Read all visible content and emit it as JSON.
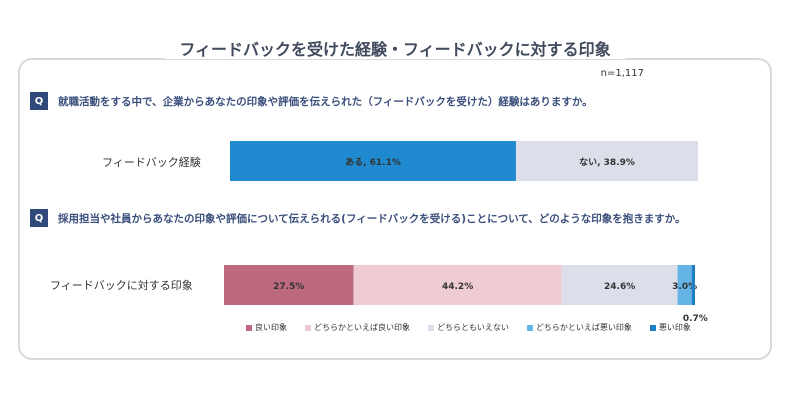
{
  "title": "フィードバックを受けた経験・フィードバックに対する印象",
  "sample_size": "n=1,117",
  "q1": {
    "badge": "Q",
    "text": "就職活動をする中で、企業からあなたの印象や評価を伝えられた（フィードバックを受けた）経験はありますか。"
  },
  "q2": {
    "badge": "Q",
    "text": "採用担当や社員からあなたの印象や評価について伝えられる(フィードバックを受ける)ことについて、どのような印象を抱きますか。"
  },
  "chart_data": [
    {
      "type": "bar",
      "orientation": "horizontal-stacked-100",
      "row_label": "フィードバック経験",
      "series": [
        {
          "name": "ある",
          "value": 61.1,
          "label": "ある, 61.1%",
          "color": "#1f8ad0"
        },
        {
          "name": "ない",
          "value": 38.9,
          "label": "ない, 38.9%",
          "color": "#dcdfe9"
        }
      ]
    },
    {
      "type": "bar",
      "orientation": "horizontal-stacked-100",
      "row_label": "フィードバックに対する印象",
      "series": [
        {
          "name": "良い印象",
          "value": 27.5,
          "label": "27.5%",
          "color": "#bd6a7e"
        },
        {
          "name": "どちらかといえば良い印象",
          "value": 44.2,
          "label": "44.2%",
          "color": "#efcbd3"
        },
        {
          "name": "どちらともいえない",
          "value": 24.6,
          "label": "24.6%",
          "color": "#dcdfe9"
        },
        {
          "name": "どちらかといえば悪い印象",
          "value": 3.0,
          "label": "3.0%",
          "color": "#64b4e6"
        },
        {
          "name": "悪い印象",
          "value": 0.7,
          "label": "0.7%",
          "color": "#1f7fc4"
        }
      ]
    }
  ]
}
